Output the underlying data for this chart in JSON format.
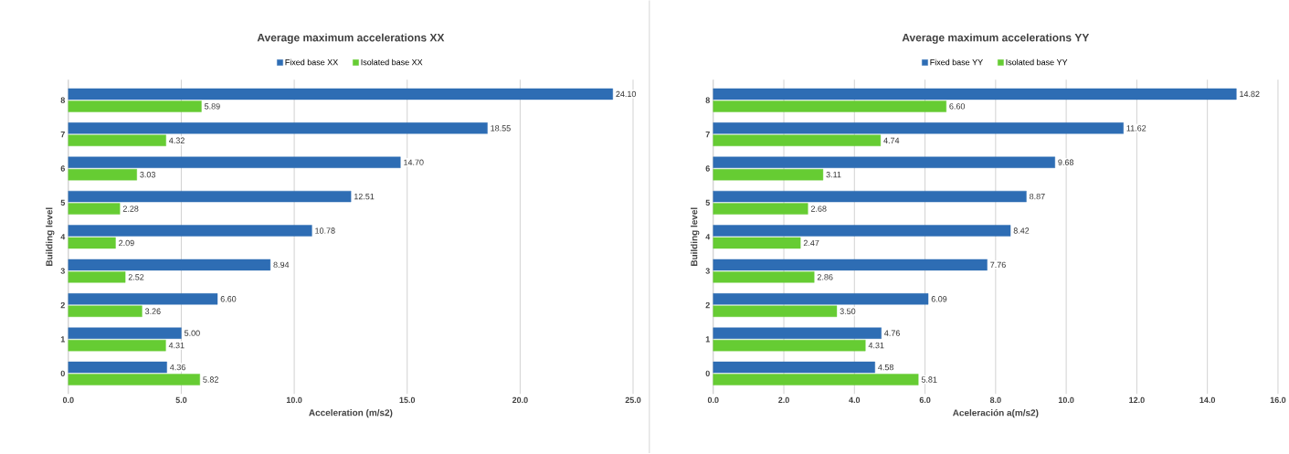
{
  "chart_data": [
    {
      "type": "bar",
      "orientation": "horizontal",
      "title": "Average maximum accelerations XX",
      "xlabel": "Acceleration (m/s2)",
      "ylabel": "Building level",
      "categories": [
        "8",
        "7",
        "6",
        "5",
        "4",
        "3",
        "2",
        "1",
        "0"
      ],
      "series": [
        {
          "name": "Fixed base XX",
          "color": "#2e6db4",
          "values": [
            24.1,
            18.55,
            14.7,
            12.51,
            10.78,
            8.94,
            6.6,
            5.0,
            4.36
          ],
          "value_labels": [
            "24.10",
            "18.55",
            "14.70",
            "12.51",
            "10.78",
            "8.94",
            "6.60",
            "5.00",
            "4.36"
          ]
        },
        {
          "name": "Isolated base XX",
          "color": "#66cc33",
          "values": [
            5.89,
            4.32,
            3.03,
            2.28,
            2.09,
            2.52,
            3.26,
            4.31,
            5.82
          ],
          "value_labels": [
            "5.89",
            "4.32",
            "3.03",
            "2.28",
            "2.09",
            "2.52",
            "3.26",
            "4.31",
            "5.82"
          ]
        }
      ],
      "xlim": [
        0,
        25
      ],
      "xticks": [
        {
          "value": 0,
          "label": "0.0"
        },
        {
          "value": 5,
          "label": "5.0"
        },
        {
          "value": 10,
          "label": "10.0"
        },
        {
          "value": 15,
          "label": "15.0"
        },
        {
          "value": 20,
          "label": "20.0"
        },
        {
          "value": 25,
          "label": "25.0"
        }
      ],
      "grid": "x",
      "legend": "top"
    },
    {
      "type": "bar",
      "orientation": "horizontal",
      "title": "Average maximum accelerations YY",
      "xlabel": "Aceleración a(m/s2)",
      "ylabel": "Building level",
      "categories": [
        "8",
        "7",
        "6",
        "5",
        "4",
        "3",
        "2",
        "1",
        "0"
      ],
      "series": [
        {
          "name": "Fixed base YY",
          "color": "#2e6db4",
          "values": [
            14.82,
            11.62,
            9.68,
            8.87,
            8.42,
            7.76,
            6.09,
            4.76,
            4.58
          ],
          "value_labels": [
            "14.82",
            "11.62",
            "9.68",
            "8.87",
            "8.42",
            "7.76",
            "6.09",
            "4.76",
            "4.58"
          ]
        },
        {
          "name": "Isolated base YY",
          "color": "#66cc33",
          "values": [
            6.6,
            4.74,
            3.11,
            2.68,
            2.47,
            2.86,
            3.5,
            4.31,
            5.81
          ],
          "value_labels": [
            "6.60",
            "4.74",
            "3.11",
            "2.68",
            "2.47",
            "2.86",
            "3.50",
            "4.31",
            "5.81"
          ]
        }
      ],
      "xlim": [
        0,
        16
      ],
      "xticks": [
        {
          "value": 0,
          "label": "0.0"
        },
        {
          "value": 2,
          "label": "2.0"
        },
        {
          "value": 4,
          "label": "4.0"
        },
        {
          "value": 6,
          "label": "6.0"
        },
        {
          "value": 8,
          "label": "8.0"
        },
        {
          "value": 10,
          "label": "10.0"
        },
        {
          "value": 12,
          "label": "12.0"
        },
        {
          "value": 14,
          "label": "14.0"
        },
        {
          "value": 16,
          "label": "16.0"
        }
      ],
      "grid": "x",
      "legend": "top"
    }
  ]
}
